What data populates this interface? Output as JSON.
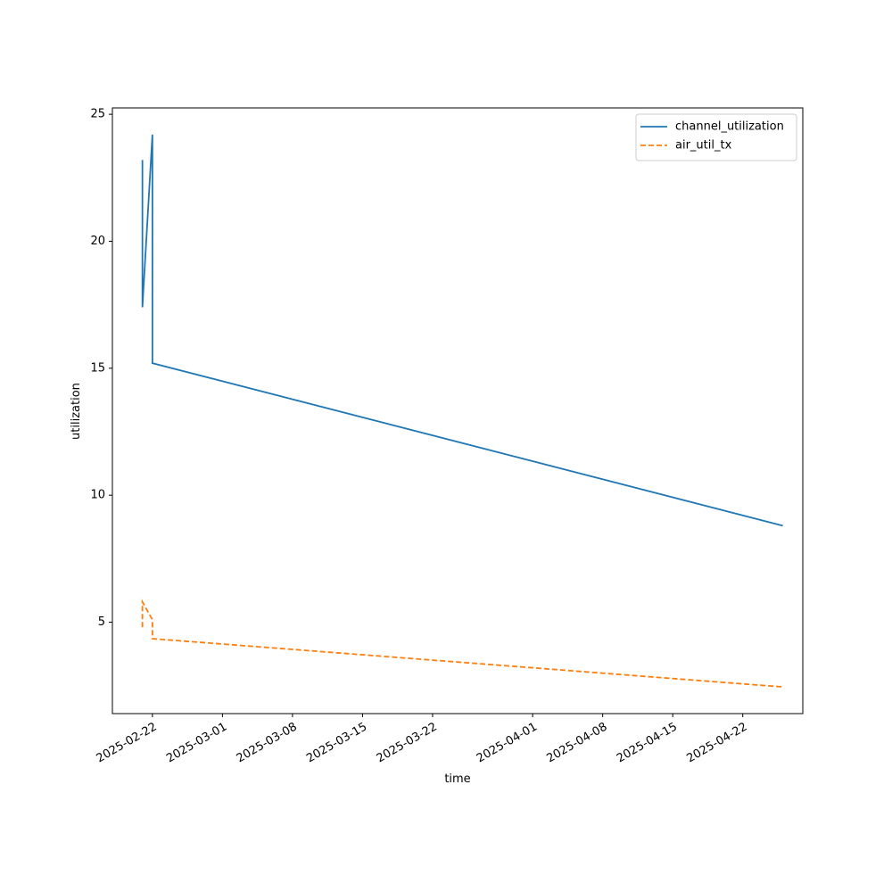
{
  "chart_data": {
    "type": "line",
    "x_label": "time",
    "y_label": "utilization",
    "x": [
      "2025-02-21",
      "2025-02-21",
      "2025-02-21",
      "2025-02-22",
      "2025-02-22",
      "2025-04-26"
    ],
    "series": [
      {
        "name": "channel_utilization",
        "color": "#1f77b4",
        "style": "solid",
        "values": [
          19.3,
          23.2,
          17.4,
          24.2,
          15.2,
          8.8
        ]
      },
      {
        "name": "air_util_tx",
        "color": "#ff7f0e",
        "style": "dashed",
        "values": [
          4.8,
          5.4,
          5.8,
          5.1,
          4.35,
          2.45
        ]
      }
    ],
    "xlim": [
      "2025-02-18",
      "2025-04-28"
    ],
    "xticks": [
      "2025-02-22",
      "2025-03-01",
      "2025-03-08",
      "2025-03-15",
      "2025-03-22",
      "2025-04-01",
      "2025-04-08",
      "2025-04-15",
      "2025-04-22"
    ],
    "ylim": [
      1.4,
      25.25
    ],
    "yticks": [
      5,
      10,
      15,
      20,
      25
    ],
    "legend": "upper right",
    "grid": false
  }
}
